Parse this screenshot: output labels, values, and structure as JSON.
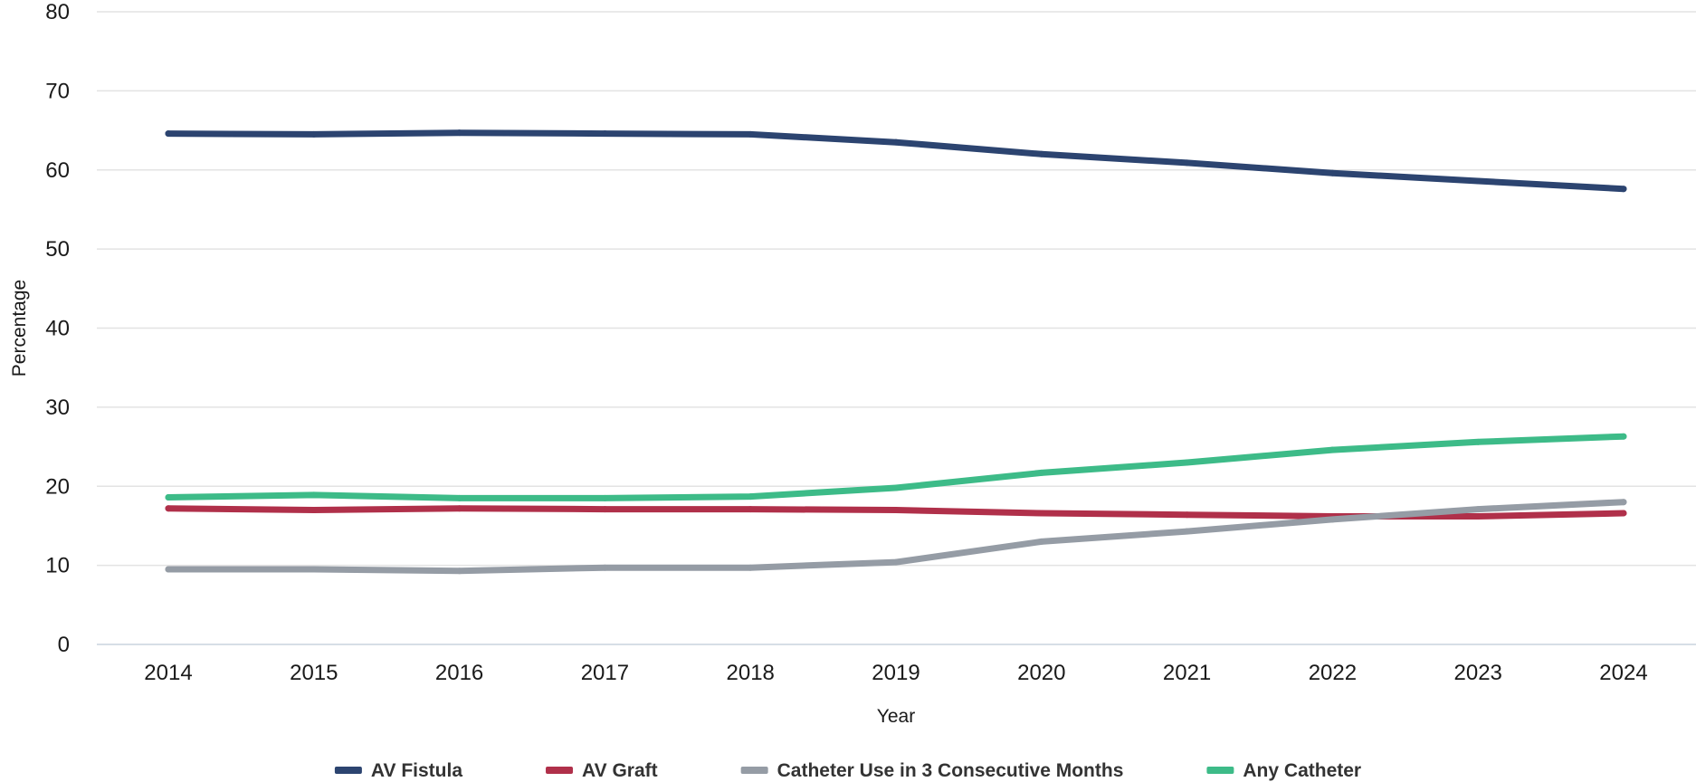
{
  "chart_data": {
    "type": "line",
    "title": "",
    "xlabel": "Year",
    "ylabel": "Percentage",
    "x": [
      "2014",
      "2015",
      "2016",
      "2017",
      "2018",
      "2019",
      "2020",
      "2021",
      "2022",
      "2023",
      "2024"
    ],
    "yticks": [
      "0",
      "10",
      "20",
      "30",
      "40",
      "50",
      "60",
      "70",
      "80"
    ],
    "ylim": [
      0,
      80
    ],
    "grid": "horizontal",
    "legend_position": "bottom",
    "series": [
      {
        "name": "AV Fistula",
        "color": "#2c4470",
        "values": [
          64.6,
          64.5,
          64.7,
          64.6,
          64.5,
          63.5,
          62.0,
          60.9,
          59.6,
          58.6,
          57.6
        ]
      },
      {
        "name": "AV Graft",
        "color": "#b0304a",
        "values": [
          17.2,
          17.0,
          17.2,
          17.1,
          17.1,
          17.0,
          16.6,
          16.4,
          16.2,
          16.2,
          16.6
        ]
      },
      {
        "name": "Catheter Use in 3 Consecutive Months",
        "color": "#959ca5",
        "values": [
          9.5,
          9.5,
          9.3,
          9.7,
          9.7,
          10.4,
          13.0,
          14.3,
          15.8,
          17.1,
          18.0
        ]
      },
      {
        "name": "Any Catheter",
        "color": "#3dbb88",
        "values": [
          18.6,
          18.9,
          18.5,
          18.5,
          18.7,
          19.8,
          21.7,
          23.0,
          24.6,
          25.6,
          26.3
        ]
      }
    ]
  }
}
